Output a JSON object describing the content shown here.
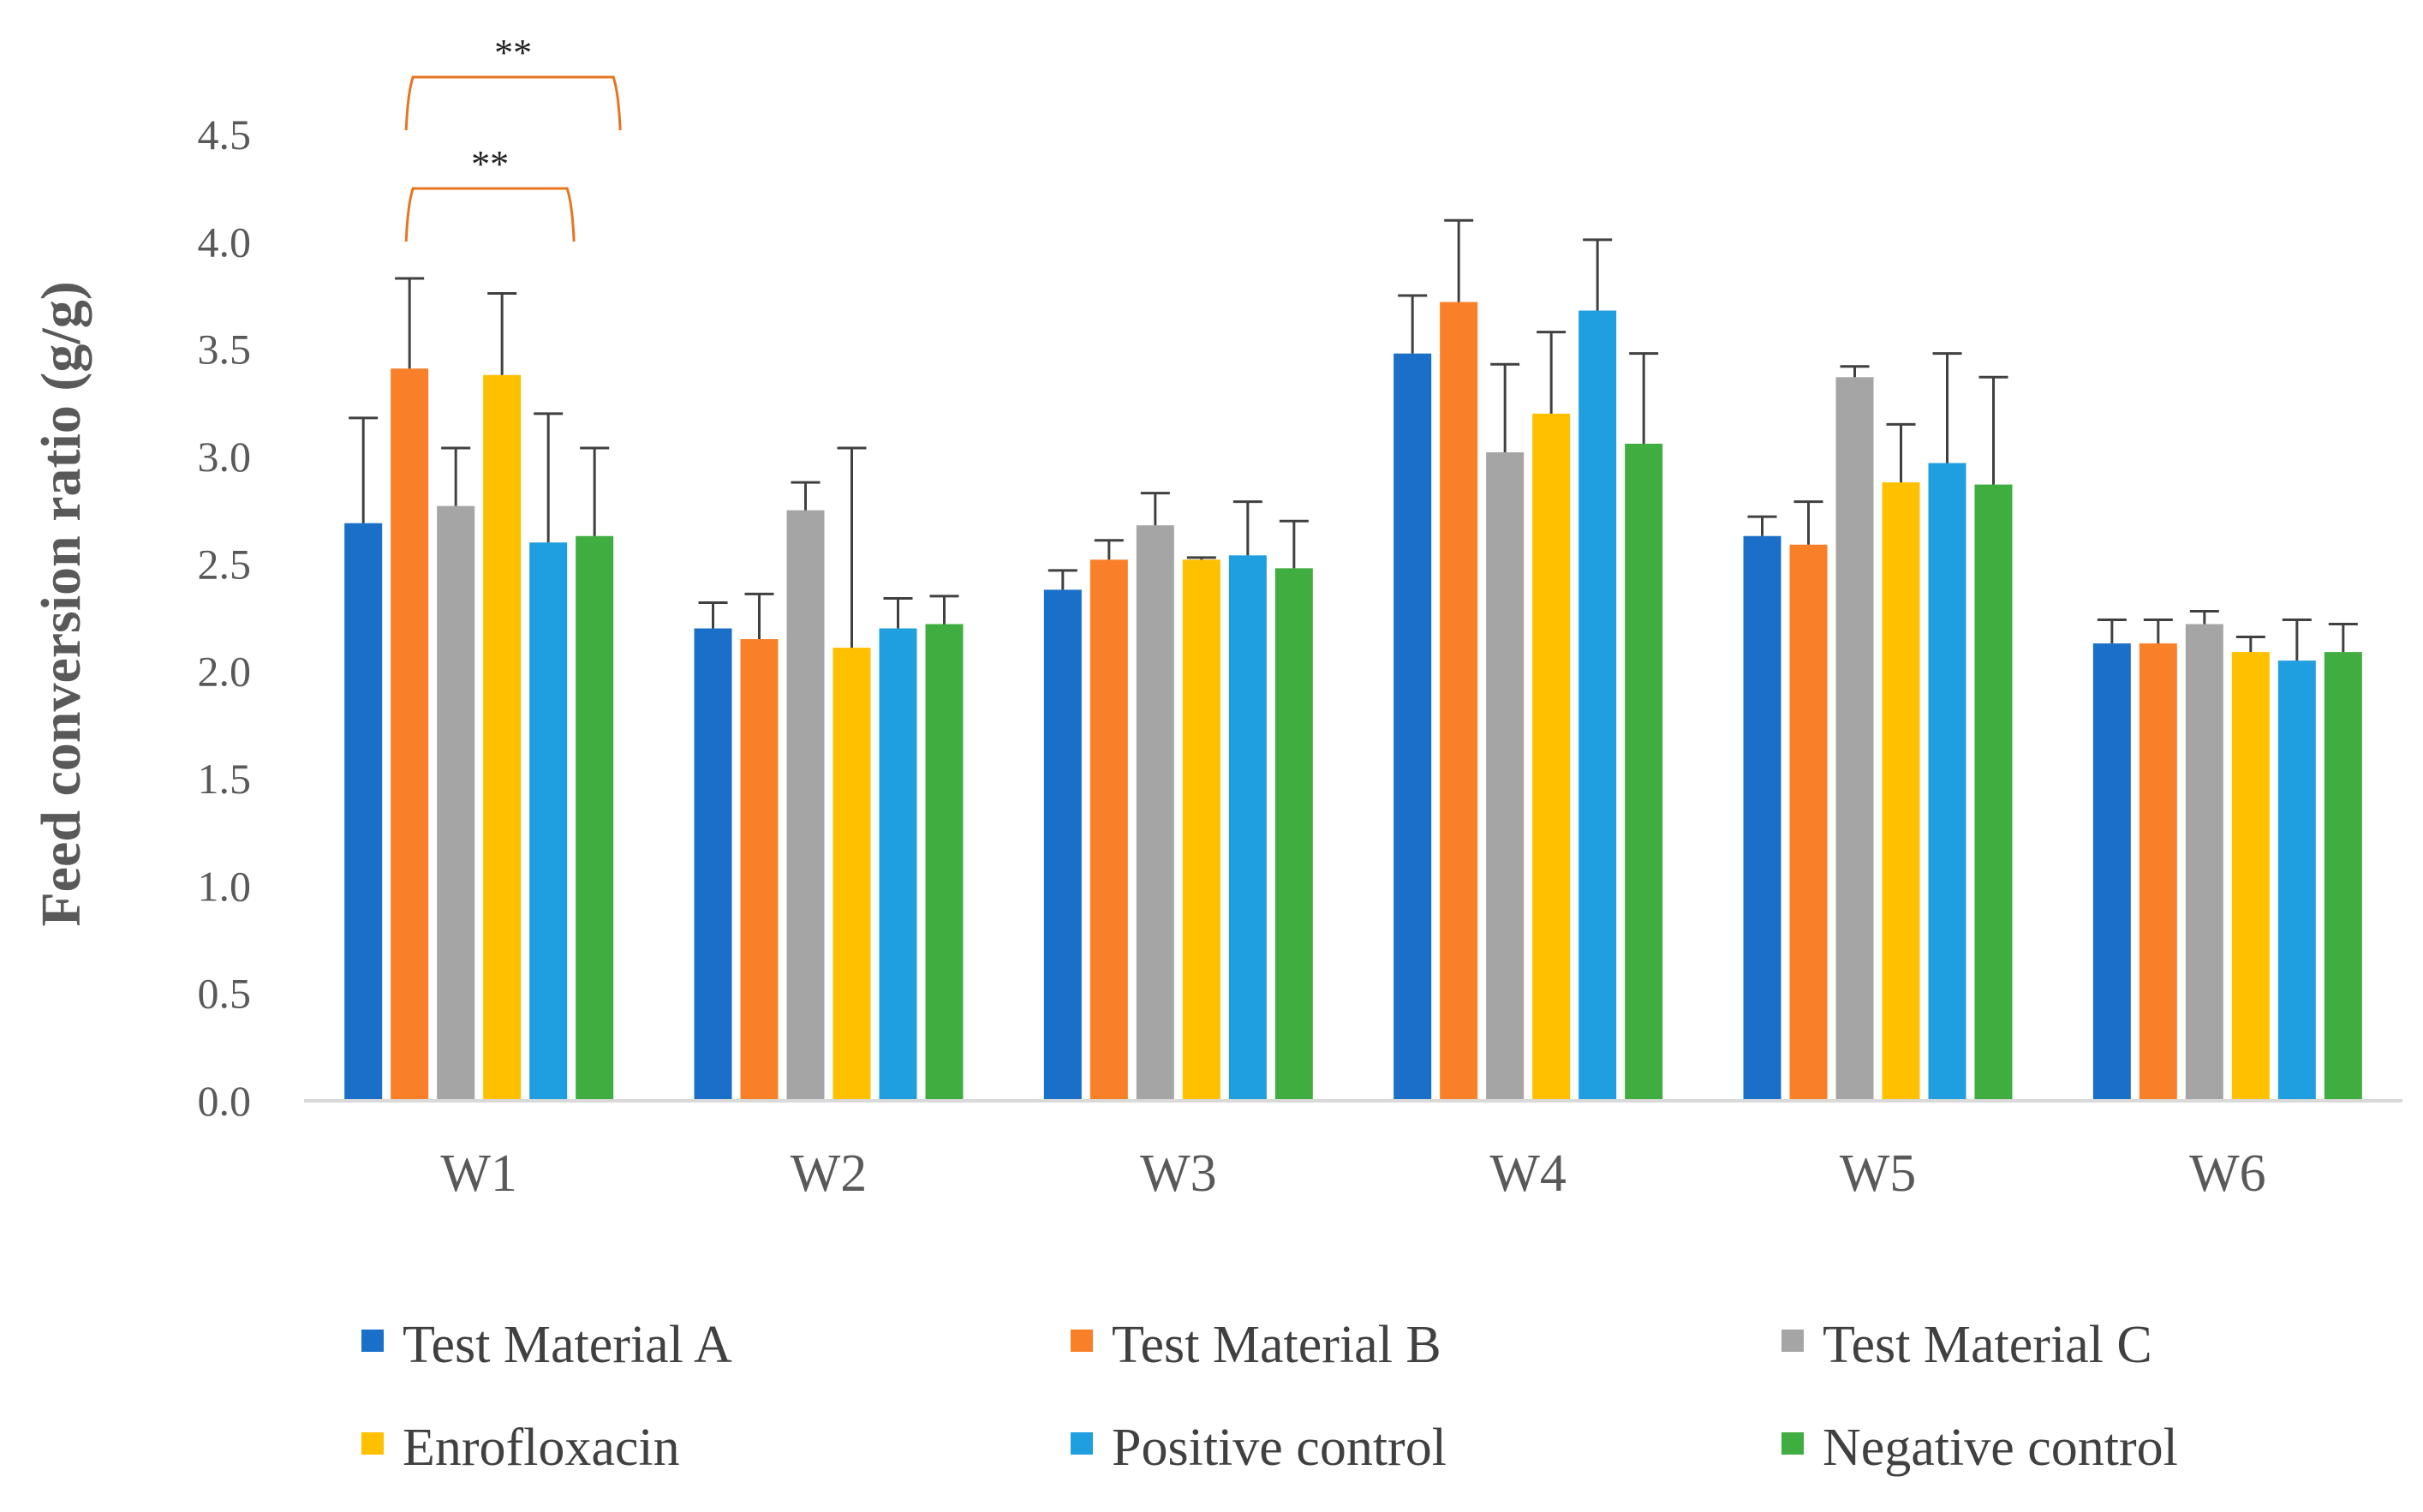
{
  "chart_data": {
    "type": "bar",
    "title": "",
    "xlabel": "",
    "ylabel": "Feed conversion ratio (g/g)",
    "ylim": [
      0,
      4.5
    ],
    "yticks": [
      "0.0",
      "0.5",
      "1.0",
      "1.5",
      "2.0",
      "2.5",
      "3.0",
      "3.5",
      "4.0",
      "4.5"
    ],
    "grid": false,
    "legend_position": "bottom",
    "categories": [
      "W1",
      "W2",
      "W3",
      "W4",
      "W5",
      "W6"
    ],
    "series": [
      {
        "name": "Test Material A",
        "color": "#1a70c8",
        "values": [
          2.69,
          2.2,
          2.38,
          3.48,
          2.63,
          2.13
        ],
        "errors": [
          0.49,
          0.12,
          0.09,
          0.27,
          0.09,
          0.11
        ]
      },
      {
        "name": "Test Material B",
        "color": "#f97f29",
        "values": [
          3.41,
          2.15,
          2.52,
          3.72,
          2.59,
          2.13
        ],
        "errors": [
          0.42,
          0.21,
          0.09,
          0.38,
          0.2,
          0.11
        ]
      },
      {
        "name": "Test Material C",
        "color": "#a5a5a5",
        "values": [
          2.77,
          2.75,
          2.68,
          3.02,
          3.37,
          2.22
        ],
        "errors": [
          0.27,
          0.13,
          0.15,
          0.41,
          0.05,
          0.06
        ]
      },
      {
        "name": "Enrofloxacin",
        "color": "#ffc000",
        "values": [
          3.38,
          2.11,
          2.52,
          3.2,
          2.88,
          2.09
        ],
        "errors": [
          0.38,
          0.93,
          0.01,
          0.38,
          0.27,
          0.07
        ]
      },
      {
        "name": "Positive control",
        "color": "#1f9ee0",
        "values": [
          2.6,
          2.2,
          2.54,
          3.68,
          2.97,
          2.05
        ],
        "errors": [
          0.6,
          0.14,
          0.25,
          0.33,
          0.51,
          0.19
        ]
      },
      {
        "name": "Negative control",
        "color": "#40ad40",
        "values": [
          2.63,
          2.22,
          2.48,
          3.06,
          2.87,
          2.09
        ],
        "errors": [
          0.41,
          0.13,
          0.22,
          0.42,
          0.5,
          0.13
        ]
      }
    ],
    "annotations": [
      {
        "text": "**",
        "category": "W1",
        "from_series": "Test Material B",
        "to_series": "Negative control",
        "color": "#e8741f"
      },
      {
        "text": "**",
        "category": "W1",
        "from_series": "Test Material B",
        "to_series": "Positive control",
        "color": "#e8741f"
      }
    ]
  }
}
